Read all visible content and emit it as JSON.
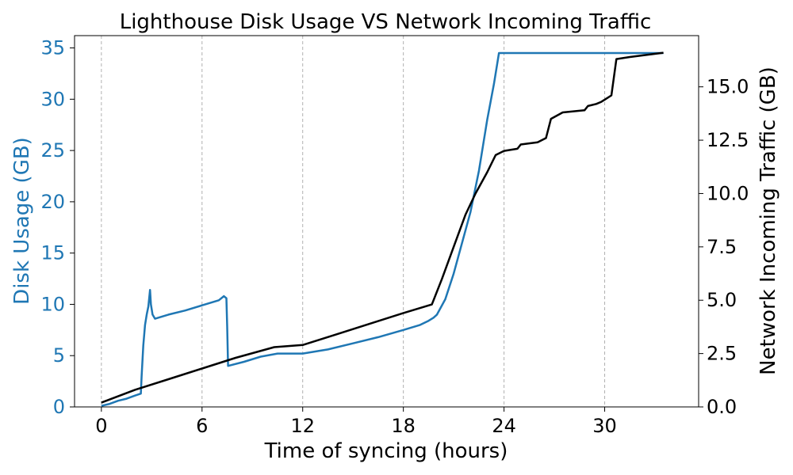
{
  "chart_data": {
    "type": "line",
    "title": "Lighthouse Disk Usage VS Network Incoming Traffic",
    "xlabel": "Time of syncing (hours)",
    "ylabel_left": "Disk Usage (GB)",
    "ylabel_right": "Network Incoming Traffic (GB)",
    "xlim": [
      -1.6,
      35.6
    ],
    "ylim_left": [
      0,
      36.2
    ],
    "ylim_right": [
      0,
      17.4
    ],
    "xticks": [
      "0",
      "6",
      "12",
      "18",
      "24",
      "30"
    ],
    "yticks_left": [
      "0",
      "5",
      "10",
      "15",
      "20",
      "25",
      "30",
      "35"
    ],
    "yticks_right": [
      "0.0",
      "2.5",
      "5.0",
      "7.5",
      "10.0",
      "12.5",
      "15.0"
    ],
    "grid": "vertical dashed at x ticks",
    "colors": {
      "disk": "#1f77b4",
      "network": "#000000",
      "grid": "#b0b0b0"
    },
    "series": [
      {
        "axis": "left",
        "color": "#1f77b4",
        "points": [
          [
            0,
            0.1
          ],
          [
            0.5,
            0.3
          ],
          [
            1.0,
            0.6
          ],
          [
            1.5,
            0.8
          ],
          [
            2.0,
            1.1
          ],
          [
            2.35,
            1.3
          ],
          [
            2.4,
            3.0
          ],
          [
            2.5,
            6.0
          ],
          [
            2.6,
            8.0
          ],
          [
            2.7,
            9.0
          ],
          [
            2.8,
            9.8
          ],
          [
            2.9,
            11.4
          ],
          [
            2.95,
            10.0
          ],
          [
            3.05,
            9.0
          ],
          [
            3.2,
            8.6
          ],
          [
            4.0,
            9.0
          ],
          [
            5.0,
            9.4
          ],
          [
            6.0,
            9.9
          ],
          [
            7.0,
            10.4
          ],
          [
            7.3,
            10.8
          ],
          [
            7.45,
            10.6
          ],
          [
            7.5,
            7.8
          ],
          [
            7.55,
            4.0
          ],
          [
            8.5,
            4.4
          ],
          [
            9.5,
            4.9
          ],
          [
            10.5,
            5.2
          ],
          [
            12.0,
            5.2
          ],
          [
            13.5,
            5.6
          ],
          [
            15.0,
            6.2
          ],
          [
            16.5,
            6.8
          ],
          [
            18.0,
            7.5
          ],
          [
            19.0,
            8.0
          ],
          [
            19.5,
            8.4
          ],
          [
            19.8,
            8.7
          ],
          [
            20.0,
            9.0
          ],
          [
            20.5,
            10.5
          ],
          [
            21.0,
            13.0
          ],
          [
            21.5,
            16.0
          ],
          [
            22.0,
            19.0
          ],
          [
            22.5,
            23.0
          ],
          [
            23.0,
            28.0
          ],
          [
            23.4,
            31.5
          ],
          [
            23.7,
            34.5
          ],
          [
            24.0,
            34.5
          ],
          [
            28.0,
            34.5
          ],
          [
            33.5,
            34.5
          ]
        ]
      },
      {
        "axis": "right",
        "color": "#000000",
        "points": [
          [
            0,
            0.2
          ],
          [
            2.0,
            0.8
          ],
          [
            4.0,
            1.3
          ],
          [
            6.0,
            1.8
          ],
          [
            8.0,
            2.3
          ],
          [
            10.3,
            2.8
          ],
          [
            12.0,
            2.9
          ],
          [
            14.0,
            3.4
          ],
          [
            16.0,
            3.9
          ],
          [
            18.0,
            4.4
          ],
          [
            19.7,
            4.8
          ],
          [
            20.3,
            6.0
          ],
          [
            21.0,
            7.5
          ],
          [
            21.7,
            9.0
          ],
          [
            22.3,
            10.0
          ],
          [
            23.0,
            11.0
          ],
          [
            23.5,
            11.8
          ],
          [
            24.0,
            12.0
          ],
          [
            24.8,
            12.1
          ],
          [
            25.0,
            12.3
          ],
          [
            26.0,
            12.4
          ],
          [
            26.5,
            12.6
          ],
          [
            26.8,
            13.5
          ],
          [
            27.5,
            13.8
          ],
          [
            28.8,
            13.9
          ],
          [
            29.0,
            14.1
          ],
          [
            29.5,
            14.2
          ],
          [
            29.8,
            14.3
          ],
          [
            30.4,
            14.6
          ],
          [
            30.7,
            16.3
          ],
          [
            31.5,
            16.4
          ],
          [
            33.5,
            16.6
          ]
        ]
      }
    ]
  }
}
